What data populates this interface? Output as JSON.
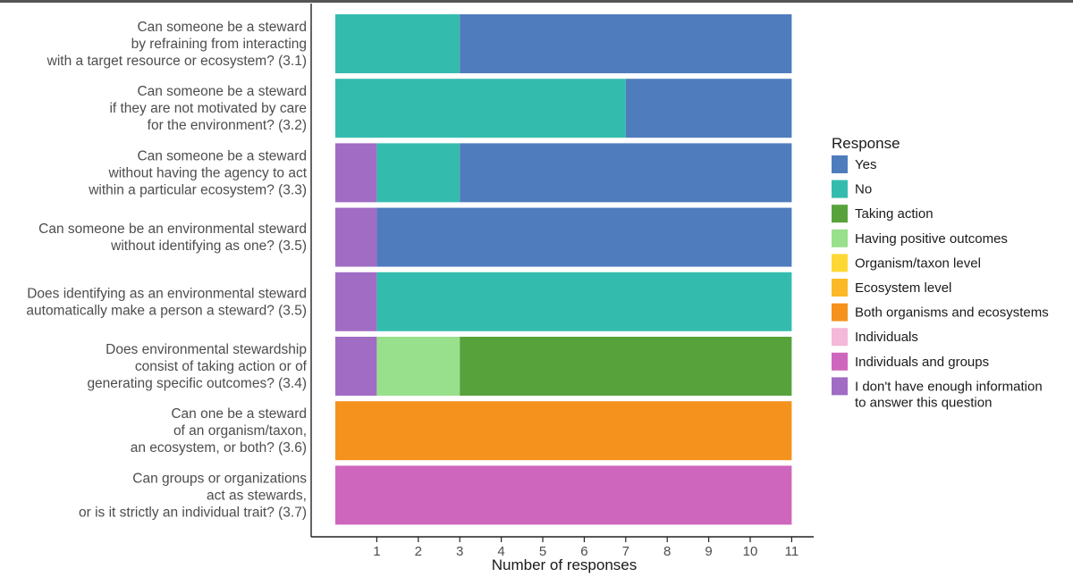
{
  "chart_data": {
    "type": "bar",
    "orientation": "horizontal",
    "stacked": true,
    "xlabel": "Number of responses",
    "xlim": [
      0,
      11
    ],
    "xticks": [
      1,
      2,
      3,
      4,
      5,
      6,
      7,
      8,
      9,
      10,
      11
    ],
    "grid": false,
    "legend_position": "right",
    "legend_title": "Response",
    "categories": [
      [
        "Can someone be a steward",
        "by refraining from interacting",
        "with a target resource or ecosystem? (3.1)"
      ],
      [
        "Can someone be a steward",
        "if they are not motivated by care",
        "for the environment? (3.2)"
      ],
      [
        "Can someone be a steward",
        "without having the agency to act",
        "within a particular ecosystem? (3.3)"
      ],
      [
        "Can someone be an environmental steward",
        "without identifying as one? (3.5)"
      ],
      [
        "Does identifying as an environmental steward",
        "automatically make a person a steward? (3.5)"
      ],
      [
        "Does environmental stewardship",
        "consist of taking action or of",
        "generating specific outcomes? (3.4)"
      ],
      [
        "Can one be a steward",
        "of an organism/taxon,",
        "an ecosystem, or both? (3.6)"
      ],
      [
        "Can groups or organizations",
        "act as stewards,",
        "or is it strictly an individual trait? (3.7)"
      ]
    ],
    "series": [
      {
        "name": "I don't have enough information to answer this question",
        "color": "#a06cc4",
        "values": [
          0,
          0,
          1,
          1,
          1,
          1,
          0,
          0
        ]
      },
      {
        "name": "No",
        "color": "#33bcae",
        "values": [
          3,
          7,
          2,
          0,
          10,
          0,
          0,
          0
        ]
      },
      {
        "name": "Having positive outcomes",
        "color": "#98e08b",
        "values": [
          0,
          0,
          0,
          0,
          0,
          2,
          0,
          0
        ]
      },
      {
        "name": "Taking action",
        "color": "#58a23c",
        "values": [
          0,
          0,
          0,
          0,
          0,
          8,
          0,
          0
        ]
      },
      {
        "name": "Yes",
        "color": "#4f7cbd",
        "values": [
          8,
          4,
          8,
          10,
          0,
          0,
          0,
          0
        ]
      },
      {
        "name": "Organism/taxon level",
        "color": "#fdd835",
        "values": [
          0,
          0,
          0,
          0,
          0,
          0,
          0,
          0
        ]
      },
      {
        "name": "Ecosystem level",
        "color": "#fbb928",
        "values": [
          0,
          0,
          0,
          0,
          0,
          0,
          0,
          0
        ]
      },
      {
        "name": "Both organisms and ecosystems",
        "color": "#f5921d",
        "values": [
          0,
          0,
          0,
          0,
          0,
          0,
          11,
          0
        ]
      },
      {
        "name": "Individuals",
        "color": "#f4b8d8",
        "values": [
          0,
          0,
          0,
          0,
          0,
          0,
          0,
          0
        ]
      },
      {
        "name": "Individuals and groups",
        "color": "#cf66bd",
        "values": [
          0,
          0,
          0,
          0,
          0,
          0,
          0,
          11
        ]
      }
    ],
    "legend": [
      {
        "label": [
          "Yes"
        ],
        "color": "#4f7cbd"
      },
      {
        "label": [
          "No"
        ],
        "color": "#33bcae"
      },
      {
        "label": [
          "Taking action"
        ],
        "color": "#58a23c"
      },
      {
        "label": [
          "Having positive outcomes"
        ],
        "color": "#98e08b"
      },
      {
        "label": [
          "Organism/taxon level"
        ],
        "color": "#fdd835"
      },
      {
        "label": [
          "Ecosystem level"
        ],
        "color": "#fbb928"
      },
      {
        "label": [
          "Both organisms and ecosystems"
        ],
        "color": "#f5921d"
      },
      {
        "label": [
          "Individuals"
        ],
        "color": "#f4b8d8"
      },
      {
        "label": [
          "Individuals and groups"
        ],
        "color": "#cf66bd"
      },
      {
        "label": [
          "I don't have enough information",
          "to answer this question"
        ],
        "color": "#a06cc4"
      }
    ]
  }
}
